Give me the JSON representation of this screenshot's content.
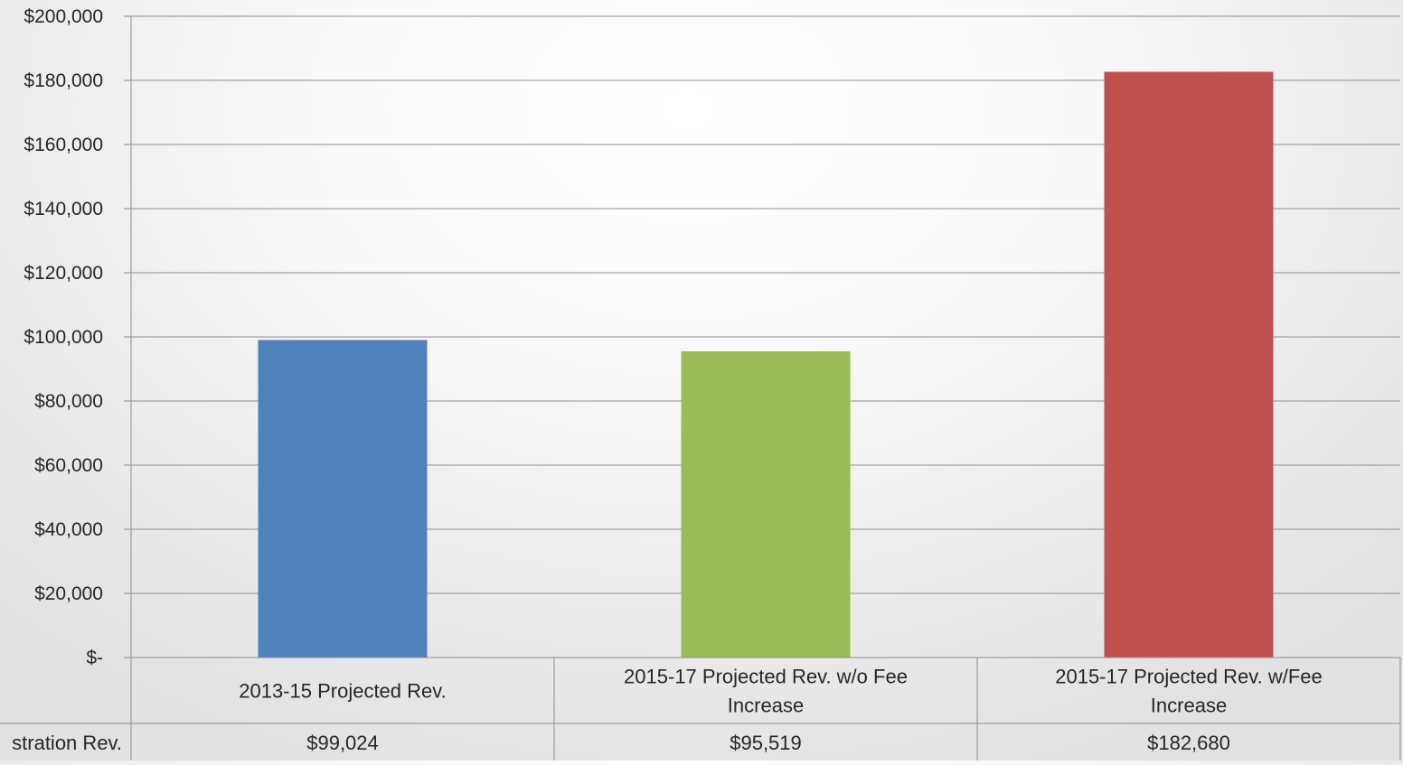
{
  "chart_data": {
    "type": "bar",
    "categories": [
      [
        "2013-15 Projected Rev."
      ],
      [
        "2015-17 Projected Rev. w/o Fee",
        "Increase"
      ],
      [
        "2015-17 Projected Rev. w/Fee",
        "Increase"
      ]
    ],
    "series": [
      {
        "name": "Total Registration Rev.",
        "values": [
          99024,
          95519,
          182680
        ],
        "colors": [
          "#4f81bd",
          "#9bbb59",
          "#c0504d"
        ]
      }
    ],
    "ylim": [
      0,
      200000
    ],
    "y_ticks": [
      0,
      20000,
      40000,
      60000,
      80000,
      100000,
      120000,
      140000,
      160000,
      180000,
      200000
    ],
    "y_tick_labels": [
      "$-",
      "$20,000",
      "$40,000",
      "$60,000",
      "$80,000",
      "$100,000",
      "$120,000",
      "$140,000",
      "$160,000",
      "$180,000",
      "$200,000"
    ],
    "grid": true,
    "data_table": {
      "row_label": "Total Registration Rev.",
      "row_label_visible": "stration Rev.",
      "values": [
        "$99,024",
        "$95,519",
        "$182,680"
      ]
    }
  }
}
